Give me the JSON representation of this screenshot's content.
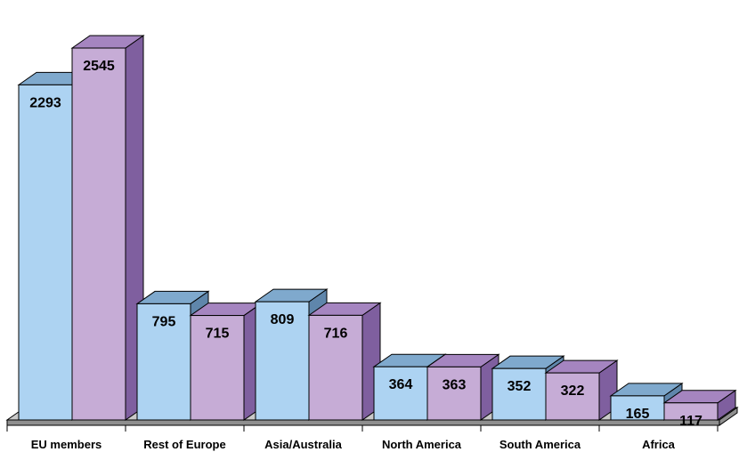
{
  "chart_data": {
    "type": "bar",
    "style": "3d-clustered",
    "categories": [
      "EU members",
      "Rest of Europe",
      "Asia/Australia",
      "North America",
      "South America",
      "Africa"
    ],
    "series": [
      {
        "values": [
          2293,
          795,
          809,
          364,
          352,
          165
        ]
      },
      {
        "values": [
          2545,
          715,
          716,
          363,
          322,
          117
        ]
      }
    ],
    "ylim": [
      0,
      2545
    ],
    "grid": false,
    "legend": "none",
    "colors": {
      "series1_front": "#add3f2",
      "series1_top": "#7fa9cd",
      "series1_side": "#5f86ab",
      "series2_front": "#c6acd6",
      "series2_top": "#a585c0",
      "series2_side": "#7f5f9f",
      "floor_top": "#c9c9c9",
      "floor_front": "#8f8f8f"
    }
  }
}
